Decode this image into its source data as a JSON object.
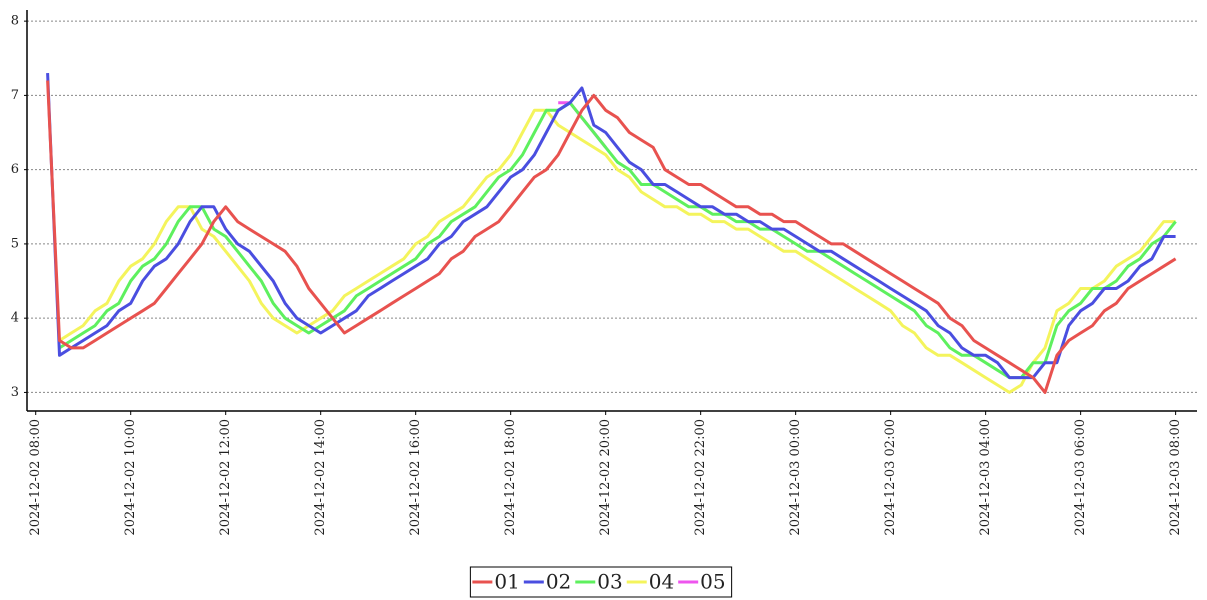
{
  "chart_data": {
    "type": "line",
    "x": [
      "2024-12-02 08:15",
      "2024-12-02 08:30",
      "2024-12-02 08:45",
      "2024-12-02 09:00",
      "2024-12-02 09:15",
      "2024-12-02 09:30",
      "2024-12-02 09:45",
      "2024-12-02 10:00",
      "2024-12-02 10:15",
      "2024-12-02 10:30",
      "2024-12-02 10:45",
      "2024-12-02 11:00",
      "2024-12-02 11:15",
      "2024-12-02 11:30",
      "2024-12-02 11:45",
      "2024-12-02 12:00",
      "2024-12-02 12:15",
      "2024-12-02 12:30",
      "2024-12-02 12:45",
      "2024-12-02 13:00",
      "2024-12-02 13:15",
      "2024-12-02 13:30",
      "2024-12-02 13:45",
      "2024-12-02 14:00",
      "2024-12-02 14:15",
      "2024-12-02 14:30",
      "2024-12-02 14:45",
      "2024-12-02 15:00",
      "2024-12-02 15:15",
      "2024-12-02 15:30",
      "2024-12-02 15:45",
      "2024-12-02 16:00",
      "2024-12-02 16:15",
      "2024-12-02 16:30",
      "2024-12-02 16:45",
      "2024-12-02 17:00",
      "2024-12-02 17:15",
      "2024-12-02 17:30",
      "2024-12-02 17:45",
      "2024-12-02 18:00",
      "2024-12-02 18:15",
      "2024-12-02 18:30",
      "2024-12-02 18:45",
      "2024-12-02 19:00",
      "2024-12-02 19:15",
      "2024-12-02 19:30",
      "2024-12-02 19:45",
      "2024-12-02 20:00",
      "2024-12-02 20:15",
      "2024-12-02 20:30",
      "2024-12-02 20:45",
      "2024-12-02 21:00",
      "2024-12-02 21:15",
      "2024-12-02 21:30",
      "2024-12-02 21:45",
      "2024-12-02 22:00",
      "2024-12-02 22:15",
      "2024-12-02 22:30",
      "2024-12-02 22:45",
      "2024-12-02 23:00",
      "2024-12-02 23:15",
      "2024-12-02 23:30",
      "2024-12-02 23:45",
      "2024-12-03 00:00",
      "2024-12-03 00:15",
      "2024-12-03 00:30",
      "2024-12-03 00:45",
      "2024-12-03 01:00",
      "2024-12-03 01:15",
      "2024-12-03 01:30",
      "2024-12-03 01:45",
      "2024-12-03 02:00",
      "2024-12-03 02:15",
      "2024-12-03 02:30",
      "2024-12-03 02:45",
      "2024-12-03 03:00",
      "2024-12-03 03:15",
      "2024-12-03 03:30",
      "2024-12-03 03:45",
      "2024-12-03 04:00",
      "2024-12-03 04:15",
      "2024-12-03 04:30",
      "2024-12-03 04:45",
      "2024-12-03 05:00",
      "2024-12-03 05:15",
      "2024-12-03 05:30",
      "2024-12-03 05:45",
      "2024-12-03 06:00",
      "2024-12-03 06:15",
      "2024-12-03 06:30",
      "2024-12-03 06:45",
      "2024-12-03 07:00",
      "2024-12-03 07:15",
      "2024-12-03 07:30",
      "2024-12-03 07:45",
      "2024-12-03 08:00"
    ],
    "series": [
      {
        "name": "01",
        "color": "#e8524f",
        "values": [
          7.2,
          3.7,
          3.6,
          3.6,
          3.7,
          3.8,
          3.9,
          4.0,
          4.1,
          4.2,
          4.4,
          4.6,
          4.8,
          5.0,
          5.3,
          5.5,
          5.3,
          5.2,
          5.1,
          5.0,
          4.9,
          4.7,
          4.4,
          4.2,
          4.0,
          3.8,
          3.9,
          4.0,
          4.1,
          4.2,
          4.3,
          4.4,
          4.5,
          4.6,
          4.8,
          4.9,
          5.1,
          5.2,
          5.3,
          5.5,
          5.7,
          5.9,
          6.0,
          6.2,
          6.5,
          6.8,
          7.0,
          6.8,
          6.7,
          6.5,
          6.4,
          6.3,
          6.0,
          5.9,
          5.8,
          5.8,
          5.7,
          5.6,
          5.5,
          5.5,
          5.4,
          5.4,
          5.3,
          5.3,
          5.2,
          5.1,
          5.0,
          5.0,
          4.9,
          4.8,
          4.7,
          4.6,
          4.5,
          4.4,
          4.3,
          4.2,
          4.0,
          3.9,
          3.7,
          3.6,
          3.5,
          3.4,
          3.3,
          3.2,
          3.0,
          3.5,
          3.7,
          3.8,
          3.9,
          4.1,
          4.2,
          4.4,
          4.5,
          4.6,
          4.7,
          4.8
        ]
      },
      {
        "name": "02",
        "color": "#4a4ee0",
        "values": [
          7.3,
          3.5,
          3.6,
          3.7,
          3.8,
          3.9,
          4.1,
          4.2,
          4.5,
          4.7,
          4.8,
          5.0,
          5.3,
          5.5,
          5.5,
          5.2,
          5.0,
          4.9,
          4.7,
          4.5,
          4.2,
          4.0,
          3.9,
          3.8,
          3.9,
          4.0,
          4.1,
          4.3,
          4.4,
          4.5,
          4.6,
          4.7,
          4.8,
          5.0,
          5.1,
          5.3,
          5.4,
          5.5,
          5.7,
          5.9,
          6.0,
          6.2,
          6.5,
          6.8,
          6.9,
          7.1,
          6.6,
          6.5,
          6.3,
          6.1,
          6.0,
          5.8,
          5.8,
          5.7,
          5.6,
          5.5,
          5.5,
          5.4,
          5.4,
          5.3,
          5.3,
          5.2,
          5.2,
          5.1,
          5.0,
          4.9,
          4.9,
          4.8,
          4.7,
          4.6,
          4.5,
          4.4,
          4.3,
          4.2,
          4.1,
          3.9,
          3.8,
          3.6,
          3.5,
          3.5,
          3.4,
          3.2,
          3.2,
          3.2,
          3.4,
          3.4,
          3.9,
          4.1,
          4.2,
          4.4,
          4.4,
          4.5,
          4.7,
          4.8,
          5.1,
          5.1
        ]
      },
      {
        "name": "03",
        "color": "#5ef05e",
        "values": [
          null,
          3.6,
          3.7,
          3.8,
          3.9,
          4.1,
          4.2,
          4.5,
          4.7,
          4.8,
          5.0,
          5.3,
          5.5,
          5.5,
          5.2,
          5.1,
          4.9,
          4.7,
          4.5,
          4.2,
          4.0,
          3.9,
          3.8,
          3.9,
          4.0,
          4.1,
          4.3,
          4.4,
          4.5,
          4.6,
          4.7,
          4.8,
          5.0,
          5.1,
          5.3,
          5.4,
          5.5,
          5.7,
          5.9,
          6.0,
          6.2,
          6.5,
          6.8,
          6.8,
          6.9,
          6.7,
          6.5,
          6.3,
          6.1,
          6.0,
          5.8,
          5.8,
          5.7,
          5.6,
          5.5,
          5.5,
          5.4,
          5.4,
          5.3,
          5.3,
          5.2,
          5.2,
          5.1,
          5.0,
          4.9,
          4.9,
          4.8,
          4.7,
          4.6,
          4.5,
          4.4,
          4.3,
          4.2,
          4.1,
          3.9,
          3.8,
          3.6,
          3.5,
          3.5,
          3.4,
          3.3,
          3.2,
          3.2,
          3.4,
          3.4,
          3.9,
          4.1,
          4.2,
          4.4,
          4.4,
          4.5,
          4.7,
          4.8,
          5.0,
          5.1,
          5.3
        ]
      },
      {
        "name": "04",
        "color": "#f4f45c",
        "values": [
          null,
          3.7,
          3.8,
          3.9,
          4.1,
          4.2,
          4.5,
          4.7,
          4.8,
          5.0,
          5.3,
          5.5,
          5.5,
          5.2,
          5.1,
          4.9,
          4.7,
          4.5,
          4.2,
          4.0,
          3.9,
          3.8,
          3.9,
          4.0,
          4.1,
          4.3,
          4.4,
          4.5,
          4.6,
          4.7,
          4.8,
          5.0,
          5.1,
          5.3,
          5.4,
          5.5,
          5.7,
          5.9,
          6.0,
          6.2,
          6.5,
          6.8,
          6.8,
          6.6,
          6.5,
          6.4,
          6.3,
          6.2,
          6.0,
          5.9,
          5.7,
          5.6,
          5.5,
          5.5,
          5.4,
          5.4,
          5.3,
          5.3,
          5.2,
          5.2,
          5.1,
          5.0,
          4.9,
          4.9,
          4.8,
          4.7,
          4.6,
          4.5,
          4.4,
          4.3,
          4.2,
          4.1,
          3.9,
          3.8,
          3.6,
          3.5,
          3.5,
          3.4,
          3.3,
          3.2,
          3.1,
          3.0,
          3.1,
          3.4,
          3.6,
          4.1,
          4.2,
          4.4,
          4.4,
          4.5,
          4.7,
          4.8,
          4.9,
          5.1,
          5.3,
          5.3
        ]
      },
      {
        "name": "05",
        "color": "#ee55ee",
        "values": [
          null,
          null,
          null,
          null,
          null,
          null,
          null,
          null,
          null,
          null,
          null,
          null,
          null,
          null,
          null,
          null,
          null,
          null,
          null,
          null,
          null,
          null,
          null,
          null,
          null,
          null,
          null,
          null,
          null,
          null,
          null,
          null,
          null,
          null,
          null,
          null,
          null,
          null,
          null,
          null,
          null,
          null,
          null,
          6.9,
          6.9,
          6.7,
          6.5,
          6.3,
          null,
          null,
          null,
          null,
          null,
          null,
          null,
          null,
          null,
          null,
          null,
          null,
          null,
          null,
          null,
          null,
          null,
          null,
          null,
          null,
          null,
          null,
          null,
          null,
          null,
          null,
          null,
          null,
          null,
          null,
          null,
          null,
          null,
          null,
          null,
          null,
          null,
          null,
          null,
          null,
          null,
          null,
          null,
          null,
          null,
          null,
          null,
          null
        ]
      }
    ],
    "xlim": [
      "2024-12-02 07:49",
      "2024-12-03 08:27"
    ],
    "xticks": [
      "2024-12-02 08:00",
      "2024-12-02 10:00",
      "2024-12-02 12:00",
      "2024-12-02 14:00",
      "2024-12-02 16:00",
      "2024-12-02 18:00",
      "2024-12-02 20:00",
      "2024-12-02 22:00",
      "2024-12-03 00:00",
      "2024-12-03 02:00",
      "2024-12-03 04:00",
      "2024-12-03 06:00",
      "2024-12-03 08:00"
    ],
    "ylim": [
      2.75,
      8.15
    ],
    "yticks": [
      3,
      4,
      5,
      6,
      7,
      8
    ],
    "grid": true,
    "legend": "bottom"
  }
}
